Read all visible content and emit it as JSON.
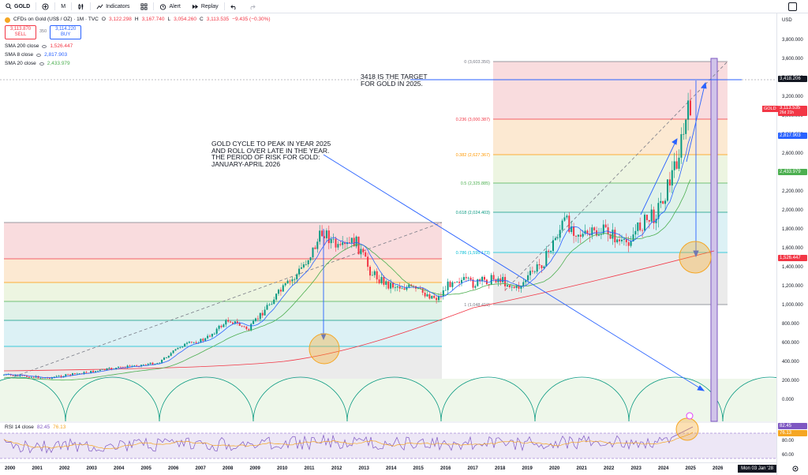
{
  "toolbar": {
    "symbol": "GOLD",
    "interval": "M",
    "indicators": "Indicators",
    "alert": "Alert",
    "replay": "Replay"
  },
  "legend": {
    "title": "CFDs on Gold (US$ / OZ) · 1M · TVC",
    "o": "3,122.298",
    "h": "3,167.740",
    "l": "3,054.260",
    "c": "3,113.535",
    "chg": "−9.435 (−0.30%)",
    "sell_price": "3,113.870",
    "sell_label": "SELL",
    "spread": "350",
    "buy_price": "3,114.220",
    "buy_label": "BUY",
    "sma200": "SMA 200 close",
    "sma200_val": "1,526.447",
    "sma8": "SMA 8 close",
    "sma8_val": "2,817.903",
    "sma20": "SMA 20 close",
    "sma20_val": "2,433.979"
  },
  "colors": {
    "sma200": "#f23645",
    "sma8": "#2962ff",
    "sma20": "#4caf50",
    "rsi": "#7e57c2",
    "rsi_ma": "#f5a623"
  },
  "annotations": {
    "target_1": "3418 IS THE TARGET",
    "target_2": "FOR GOLD IN 2025.",
    "cycle_1": "GOLD CYCLE TO PEAK IN YEAR 2025",
    "cycle_2": "AND ROLL OVER LATE IN THE YEAR.",
    "cycle_3": "THE PERIOD OF RISK FOR GOLD:",
    "cycle_4": "JANUARY-APRIL 2026"
  },
  "fib": {
    "l0": "0 (3,603.350)",
    "l236": "0.236 (3,000.387)",
    "l382": "0.382 (2,627.367)",
    "l5": "0.5 (2,325.885)",
    "l618": "0.618 (2,024.403)",
    "l786": "0.786 (1,595.173)",
    "l1": "1 (1,048.419)"
  },
  "price_scale": {
    "currency": "USD",
    "ticks": [
      "3,800.000",
      "3,600.000",
      "3,400.000",
      "3,200.000",
      "3,000.000",
      "2,800.000",
      "2,600.000",
      "2,400.000",
      "2,200.000",
      "2,000.000",
      "1,800.000",
      "1,600.000",
      "1,400.000",
      "1,200.000",
      "1,000.000",
      "800.000",
      "600.000",
      "400.000",
      "200.000",
      "0.000"
    ],
    "rsi_ticks": [
      "80.00",
      "60.00"
    ],
    "target_label": "3,418.206",
    "gold_label": "GOLD",
    "gold_price": "3,113.535",
    "gold_countdown": "26d 21h",
    "sma8_label": "2,817.903",
    "sma20_label": "2,433.979",
    "sma200_label": "1,526.447",
    "rsi_label": "82.45",
    "rsi_ma_label": "76.13"
  },
  "rsi": {
    "label": "RSI 14 close",
    "value": "82.45",
    "ma": "76.13"
  },
  "time_axis": {
    "years": [
      "2000",
      "2001",
      "2002",
      "2003",
      "2004",
      "2005",
      "2006",
      "2007",
      "2008",
      "2009",
      "2010",
      "2011",
      "2012",
      "2013",
      "2014",
      "2015",
      "2016",
      "2017",
      "2018",
      "2019",
      "2020",
      "2021",
      "2022",
      "2023",
      "2024",
      "2025",
      "2026",
      "20"
    ],
    "cursor_date": "Mon 03 Jan '28"
  }
}
